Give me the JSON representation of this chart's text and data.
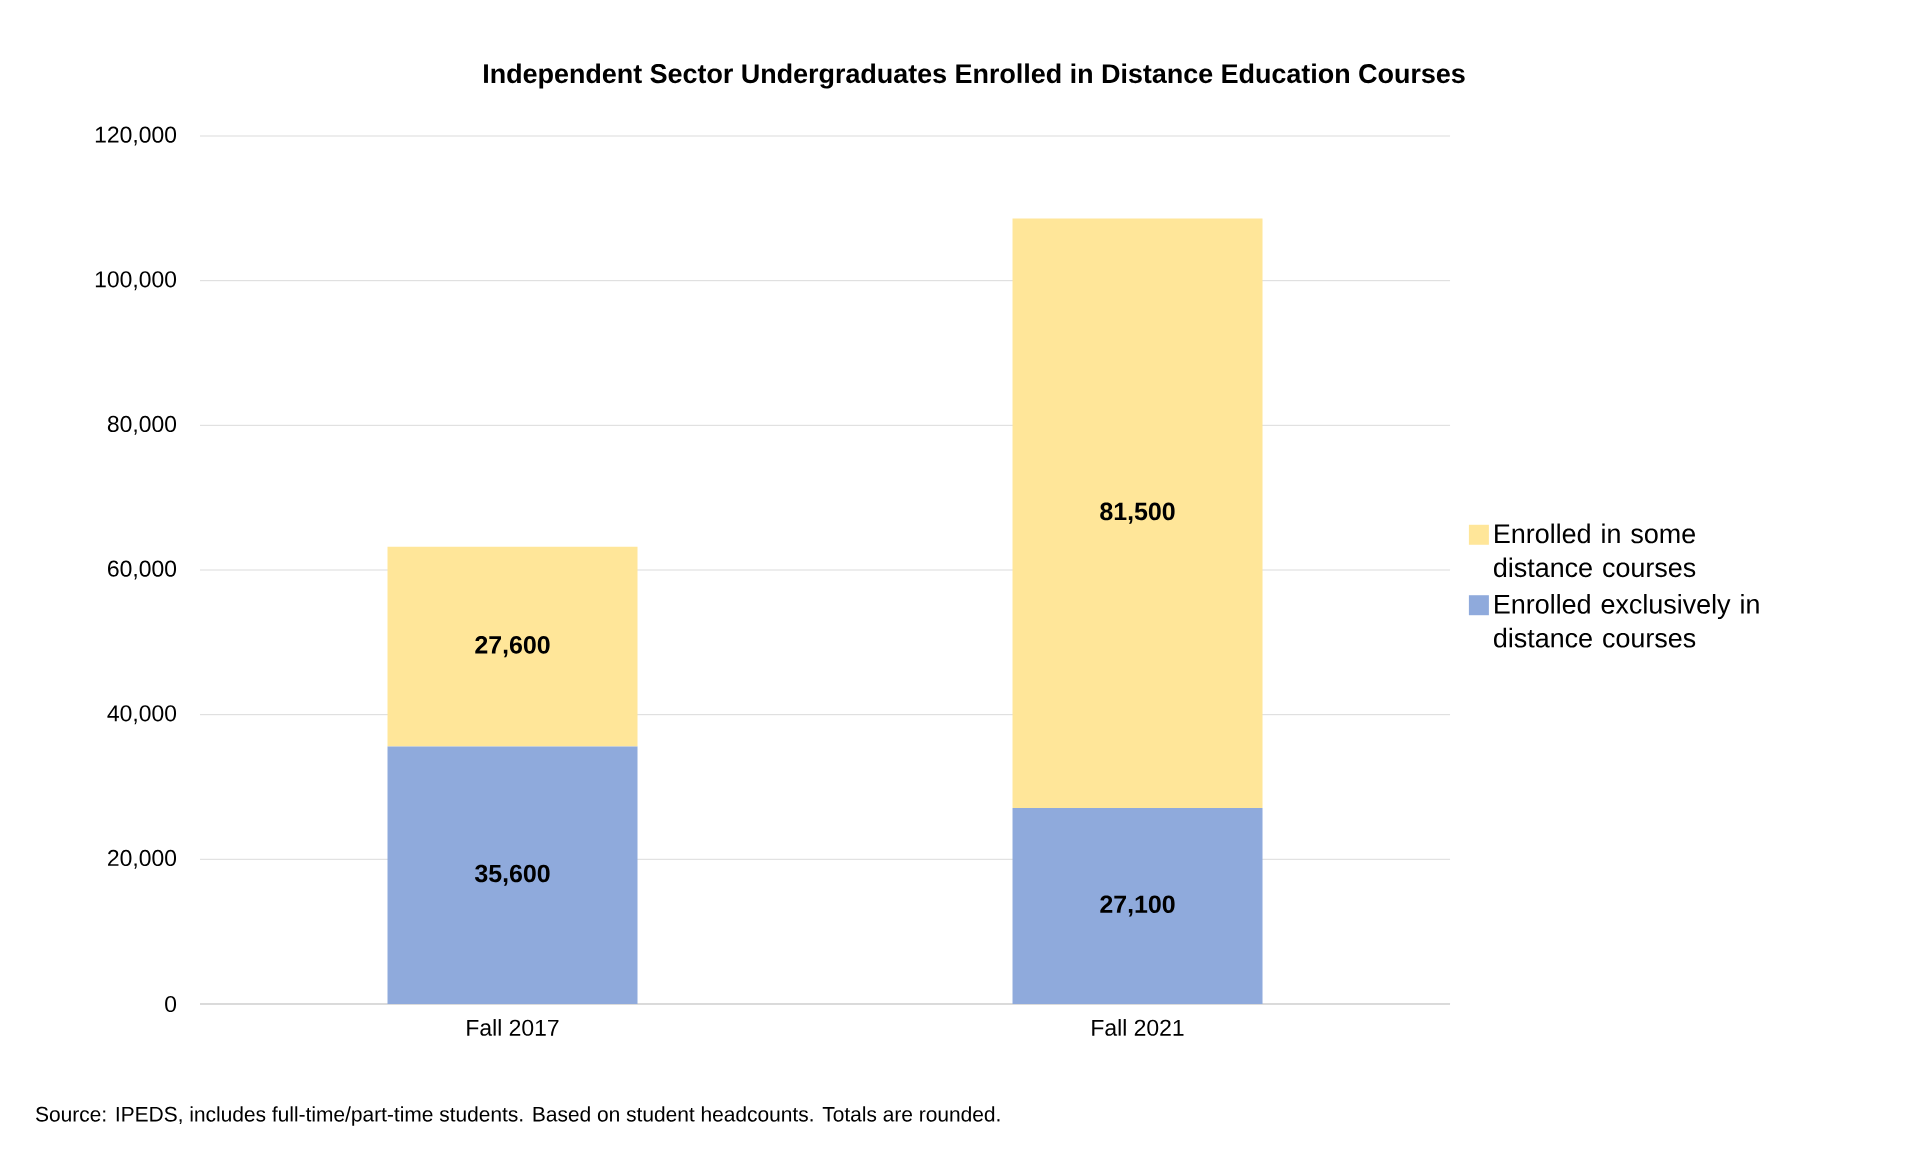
{
  "chart_data": {
    "type": "bar",
    "stacked": true,
    "title": "Independent Sector Undergraduates Enrolled in Distance Education Courses",
    "categories": [
      "Fall 2017",
      "Fall 2021"
    ],
    "series": [
      {
        "name": "Enrolled exclusively in distance courses",
        "color": "#8faadc",
        "values": [
          35600,
          27100
        ],
        "value_labels": [
          "35,600",
          "27,100"
        ]
      },
      {
        "name": "Enrolled in some distance courses",
        "color": "#ffe699",
        "values": [
          27600,
          81500
        ],
        "value_labels": [
          "27,600",
          "81,500"
        ]
      }
    ],
    "ylim": [
      0,
      120000
    ],
    "yticks": [
      {
        "value": 0,
        "label": "0"
      },
      {
        "value": 20000,
        "label": "20,000"
      },
      {
        "value": 40000,
        "label": "40,000"
      },
      {
        "value": 60000,
        "label": "60,000"
      },
      {
        "value": 80000,
        "label": "80,000"
      },
      {
        "value": 100000,
        "label": "100,000"
      },
      {
        "value": 120000,
        "label": "120,000"
      }
    ],
    "grid": "y",
    "legend": "right",
    "annotations": [
      "Source: IPEDS, includes full-time/part-time students. Based on student headcounts. Totals are rounded."
    ]
  }
}
